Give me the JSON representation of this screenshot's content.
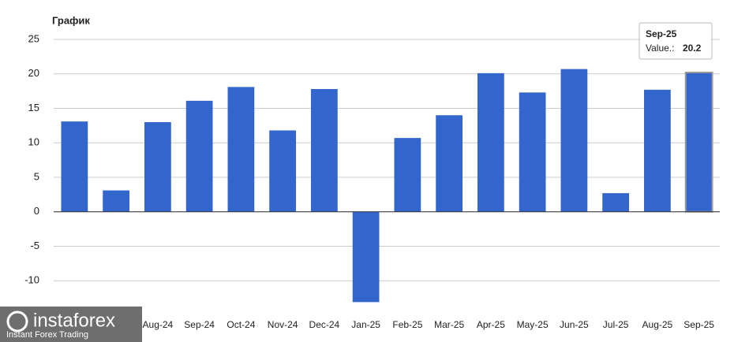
{
  "chart_data": {
    "type": "bar",
    "title": "График",
    "categories": [
      null,
      null,
      "Aug-24",
      "Sep-24",
      "Oct-24",
      "Nov-24",
      "Dec-24",
      "Jan-25",
      "Feb-25",
      "Mar-25",
      "Apr-25",
      "May-25",
      "Jun-25",
      "Jul-25",
      "Aug-25",
      "Sep-25"
    ],
    "values": [
      13.1,
      3.1,
      13.0,
      16.1,
      18.1,
      11.8,
      17.8,
      -13.1,
      10.7,
      14.0,
      20.1,
      17.3,
      20.7,
      2.7,
      17.7,
      20.2
    ],
    "color": "#3366cc",
    "ylim": [
      -15,
      25
    ],
    "yticks": [
      -10,
      -5,
      0,
      5,
      10,
      15,
      20,
      25
    ],
    "grid": true,
    "tooltip": {
      "label": "Value.:"
    }
  },
  "watermark": {
    "brand": "instaforex",
    "tagline": "Instant Forex Trading"
  }
}
